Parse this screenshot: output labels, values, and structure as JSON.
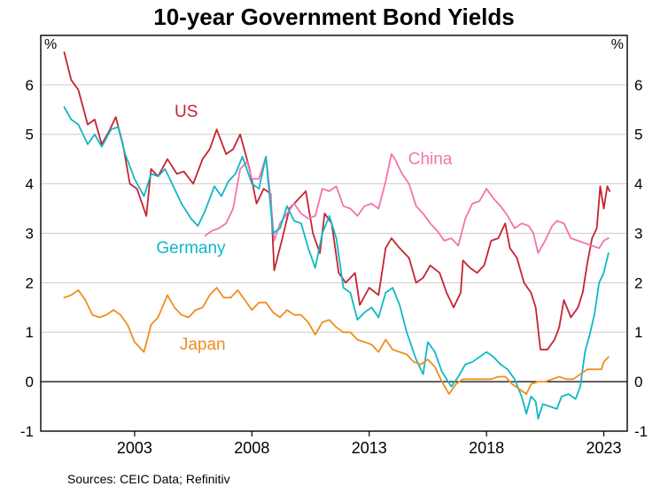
{
  "title": "10-year Government Bond Yields",
  "source": "Sources: CEIC Data; Refinitiv",
  "chart_data": {
    "type": "line",
    "title": "10-year Government Bond Yields",
    "unit": "%",
    "xlabel": "",
    "ylabel": "%",
    "x_domain": [
      1999.0,
      2024.0
    ],
    "y_domain": [
      -1,
      7
    ],
    "x_ticks": [
      2003,
      2008,
      2013,
      2018,
      2023
    ],
    "y_ticks": [
      -1,
      0,
      1,
      2,
      3,
      4,
      5,
      6
    ],
    "grid": true,
    "zero_line": true,
    "legend_position": "inline-labels",
    "frame_color": "#000000",
    "grid_color": "#cccccc",
    "series": [
      {
        "name": "US",
        "color": "#c42432",
        "label_pos": {
          "x": 2005.2,
          "y": 5.35
        },
        "points": [
          [
            2000.0,
            6.66
          ],
          [
            2000.3,
            6.1
          ],
          [
            2000.6,
            5.9
          ],
          [
            2001.0,
            5.2
          ],
          [
            2001.3,
            5.3
          ],
          [
            2001.6,
            4.8
          ],
          [
            2001.9,
            5.05
          ],
          [
            2002.2,
            5.35
          ],
          [
            2002.5,
            4.8
          ],
          [
            2002.8,
            4.0
          ],
          [
            2003.1,
            3.9
          ],
          [
            2003.5,
            3.35
          ],
          [
            2003.7,
            4.3
          ],
          [
            2004.0,
            4.15
          ],
          [
            2004.4,
            4.5
          ],
          [
            2004.8,
            4.2
          ],
          [
            2005.1,
            4.25
          ],
          [
            2005.5,
            4.0
          ],
          [
            2005.9,
            4.5
          ],
          [
            2006.2,
            4.7
          ],
          [
            2006.5,
            5.1
          ],
          [
            2006.9,
            4.6
          ],
          [
            2007.2,
            4.7
          ],
          [
            2007.5,
            5.0
          ],
          [
            2007.9,
            4.3
          ],
          [
            2008.2,
            3.6
          ],
          [
            2008.5,
            3.9
          ],
          [
            2008.8,
            3.8
          ],
          [
            2008.95,
            2.25
          ],
          [
            2009.3,
            2.9
          ],
          [
            2009.6,
            3.5
          ],
          [
            2010.0,
            3.7
          ],
          [
            2010.3,
            3.85
          ],
          [
            2010.6,
            3.0
          ],
          [
            2010.9,
            2.6
          ],
          [
            2011.1,
            3.4
          ],
          [
            2011.4,
            3.2
          ],
          [
            2011.7,
            2.2
          ],
          [
            2012.0,
            2.0
          ],
          [
            2012.4,
            2.2
          ],
          [
            2012.6,
            1.55
          ],
          [
            2013.0,
            1.9
          ],
          [
            2013.4,
            1.75
          ],
          [
            2013.7,
            2.7
          ],
          [
            2013.95,
            2.9
          ],
          [
            2014.3,
            2.7
          ],
          [
            2014.7,
            2.5
          ],
          [
            2015.0,
            2.0
          ],
          [
            2015.3,
            2.1
          ],
          [
            2015.6,
            2.35
          ],
          [
            2016.0,
            2.2
          ],
          [
            2016.3,
            1.8
          ],
          [
            2016.6,
            1.5
          ],
          [
            2016.9,
            1.8
          ],
          [
            2017.0,
            2.45
          ],
          [
            2017.3,
            2.3
          ],
          [
            2017.6,
            2.2
          ],
          [
            2017.9,
            2.35
          ],
          [
            2018.2,
            2.85
          ],
          [
            2018.5,
            2.9
          ],
          [
            2018.8,
            3.2
          ],
          [
            2019.0,
            2.7
          ],
          [
            2019.3,
            2.5
          ],
          [
            2019.6,
            2.0
          ],
          [
            2019.9,
            1.8
          ],
          [
            2020.1,
            1.5
          ],
          [
            2020.3,
            0.65
          ],
          [
            2020.6,
            0.65
          ],
          [
            2020.9,
            0.85
          ],
          [
            2021.1,
            1.1
          ],
          [
            2021.3,
            1.65
          ],
          [
            2021.6,
            1.3
          ],
          [
            2021.9,
            1.5
          ],
          [
            2022.1,
            1.8
          ],
          [
            2022.3,
            2.4
          ],
          [
            2022.5,
            2.9
          ],
          [
            2022.7,
            3.1
          ],
          [
            2022.85,
            3.95
          ],
          [
            2023.0,
            3.5
          ],
          [
            2023.15,
            3.95
          ],
          [
            2023.25,
            3.85
          ]
        ]
      },
      {
        "name": "China",
        "color": "#f473ae",
        "label_pos": {
          "x": 2015.6,
          "y": 4.4
        },
        "points": [
          [
            2006.0,
            2.95
          ],
          [
            2006.3,
            3.05
          ],
          [
            2006.6,
            3.1
          ],
          [
            2006.9,
            3.2
          ],
          [
            2007.2,
            3.5
          ],
          [
            2007.5,
            4.3
          ],
          [
            2007.8,
            4.45
          ],
          [
            2008.0,
            4.1
          ],
          [
            2008.3,
            4.1
          ],
          [
            2008.6,
            4.55
          ],
          [
            2008.8,
            3.7
          ],
          [
            2008.95,
            2.85
          ],
          [
            2009.2,
            3.2
          ],
          [
            2009.5,
            3.4
          ],
          [
            2009.8,
            3.6
          ],
          [
            2010.1,
            3.4
          ],
          [
            2010.4,
            3.3
          ],
          [
            2010.7,
            3.35
          ],
          [
            2011.0,
            3.9
          ],
          [
            2011.3,
            3.85
          ],
          [
            2011.6,
            3.95
          ],
          [
            2011.9,
            3.55
          ],
          [
            2012.2,
            3.5
          ],
          [
            2012.5,
            3.35
          ],
          [
            2012.8,
            3.55
          ],
          [
            2013.1,
            3.6
          ],
          [
            2013.4,
            3.5
          ],
          [
            2013.7,
            4.05
          ],
          [
            2013.95,
            4.6
          ],
          [
            2014.1,
            4.5
          ],
          [
            2014.4,
            4.2
          ],
          [
            2014.7,
            4.0
          ],
          [
            2015.0,
            3.55
          ],
          [
            2015.3,
            3.4
          ],
          [
            2015.6,
            3.2
          ],
          [
            2015.9,
            3.05
          ],
          [
            2016.2,
            2.85
          ],
          [
            2016.5,
            2.9
          ],
          [
            2016.8,
            2.75
          ],
          [
            2017.1,
            3.3
          ],
          [
            2017.4,
            3.6
          ],
          [
            2017.7,
            3.65
          ],
          [
            2018.0,
            3.9
          ],
          [
            2018.3,
            3.7
          ],
          [
            2018.6,
            3.55
          ],
          [
            2018.9,
            3.35
          ],
          [
            2019.2,
            3.1
          ],
          [
            2019.5,
            3.2
          ],
          [
            2019.8,
            3.15
          ],
          [
            2020.0,
            3.0
          ],
          [
            2020.2,
            2.6
          ],
          [
            2020.5,
            2.85
          ],
          [
            2020.8,
            3.15
          ],
          [
            2021.0,
            3.25
          ],
          [
            2021.3,
            3.2
          ],
          [
            2021.6,
            2.9
          ],
          [
            2021.9,
            2.85
          ],
          [
            2022.2,
            2.8
          ],
          [
            2022.5,
            2.75
          ],
          [
            2022.8,
            2.7
          ],
          [
            2023.0,
            2.85
          ],
          [
            2023.2,
            2.9
          ]
        ]
      },
      {
        "name": "Germany",
        "color": "#0fb8c6",
        "label_pos": {
          "x": 2005.4,
          "y": 2.6
        },
        "points": [
          [
            2000.0,
            5.55
          ],
          [
            2000.3,
            5.3
          ],
          [
            2000.6,
            5.2
          ],
          [
            2001.0,
            4.8
          ],
          [
            2001.3,
            5.0
          ],
          [
            2001.6,
            4.75
          ],
          [
            2002.0,
            5.1
          ],
          [
            2002.3,
            5.15
          ],
          [
            2002.6,
            4.6
          ],
          [
            2003.0,
            4.1
          ],
          [
            2003.4,
            3.75
          ],
          [
            2003.7,
            4.2
          ],
          [
            2004.0,
            4.15
          ],
          [
            2004.3,
            4.3
          ],
          [
            2004.6,
            4.0
          ],
          [
            2005.0,
            3.6
          ],
          [
            2005.4,
            3.3
          ],
          [
            2005.7,
            3.15
          ],
          [
            2006.0,
            3.45
          ],
          [
            2006.4,
            3.95
          ],
          [
            2006.7,
            3.75
          ],
          [
            2007.0,
            4.05
          ],
          [
            2007.3,
            4.2
          ],
          [
            2007.6,
            4.55
          ],
          [
            2008.0,
            4.0
          ],
          [
            2008.3,
            3.9
          ],
          [
            2008.6,
            4.55
          ],
          [
            2008.9,
            3.0
          ],
          [
            2009.2,
            3.1
          ],
          [
            2009.5,
            3.55
          ],
          [
            2009.8,
            3.25
          ],
          [
            2010.1,
            3.2
          ],
          [
            2010.4,
            2.7
          ],
          [
            2010.7,
            2.3
          ],
          [
            2011.0,
            3.0
          ],
          [
            2011.3,
            3.35
          ],
          [
            2011.6,
            2.9
          ],
          [
            2011.9,
            1.9
          ],
          [
            2012.2,
            1.8
          ],
          [
            2012.5,
            1.25
          ],
          [
            2012.8,
            1.4
          ],
          [
            2013.1,
            1.5
          ],
          [
            2013.4,
            1.3
          ],
          [
            2013.7,
            1.8
          ],
          [
            2014.0,
            1.9
          ],
          [
            2014.3,
            1.55
          ],
          [
            2014.6,
            1.0
          ],
          [
            2015.0,
            0.45
          ],
          [
            2015.3,
            0.15
          ],
          [
            2015.5,
            0.8
          ],
          [
            2015.8,
            0.6
          ],
          [
            2016.1,
            0.2
          ],
          [
            2016.5,
            -0.1
          ],
          [
            2016.8,
            0.1
          ],
          [
            2017.1,
            0.35
          ],
          [
            2017.4,
            0.4
          ],
          [
            2017.7,
            0.5
          ],
          [
            2018.0,
            0.6
          ],
          [
            2018.3,
            0.5
          ],
          [
            2018.6,
            0.35
          ],
          [
            2018.9,
            0.25
          ],
          [
            2019.2,
            0.05
          ],
          [
            2019.5,
            -0.3
          ],
          [
            2019.7,
            -0.65
          ],
          [
            2019.9,
            -0.3
          ],
          [
            2020.1,
            -0.4
          ],
          [
            2020.2,
            -0.75
          ],
          [
            2020.4,
            -0.45
          ],
          [
            2020.7,
            -0.5
          ],
          [
            2021.0,
            -0.55
          ],
          [
            2021.2,
            -0.3
          ],
          [
            2021.5,
            -0.25
          ],
          [
            2021.8,
            -0.35
          ],
          [
            2022.0,
            -0.1
          ],
          [
            2022.2,
            0.6
          ],
          [
            2022.4,
            0.95
          ],
          [
            2022.6,
            1.35
          ],
          [
            2022.8,
            2.0
          ],
          [
            2023.0,
            2.2
          ],
          [
            2023.2,
            2.6
          ]
        ]
      },
      {
        "name": "Japan",
        "color": "#ef8e1f",
        "label_pos": {
          "x": 2005.9,
          "y": 0.65
        },
        "points": [
          [
            2000.0,
            1.7
          ],
          [
            2000.3,
            1.75
          ],
          [
            2000.6,
            1.85
          ],
          [
            2000.9,
            1.65
          ],
          [
            2001.2,
            1.35
          ],
          [
            2001.5,
            1.3
          ],
          [
            2001.8,
            1.35
          ],
          [
            2002.1,
            1.45
          ],
          [
            2002.4,
            1.35
          ],
          [
            2002.7,
            1.15
          ],
          [
            2003.0,
            0.8
          ],
          [
            2003.4,
            0.6
          ],
          [
            2003.7,
            1.15
          ],
          [
            2004.0,
            1.3
          ],
          [
            2004.4,
            1.75
          ],
          [
            2004.7,
            1.5
          ],
          [
            2005.0,
            1.35
          ],
          [
            2005.3,
            1.3
          ],
          [
            2005.6,
            1.45
          ],
          [
            2005.9,
            1.5
          ],
          [
            2006.2,
            1.75
          ],
          [
            2006.5,
            1.9
          ],
          [
            2006.8,
            1.7
          ],
          [
            2007.1,
            1.7
          ],
          [
            2007.4,
            1.85
          ],
          [
            2007.7,
            1.65
          ],
          [
            2008.0,
            1.45
          ],
          [
            2008.3,
            1.6
          ],
          [
            2008.6,
            1.6
          ],
          [
            2008.9,
            1.4
          ],
          [
            2009.2,
            1.3
          ],
          [
            2009.5,
            1.45
          ],
          [
            2009.8,
            1.35
          ],
          [
            2010.1,
            1.35
          ],
          [
            2010.4,
            1.2
          ],
          [
            2010.7,
            0.95
          ],
          [
            2011.0,
            1.2
          ],
          [
            2011.3,
            1.25
          ],
          [
            2011.6,
            1.1
          ],
          [
            2011.9,
            1.0
          ],
          [
            2012.2,
            1.0
          ],
          [
            2012.5,
            0.85
          ],
          [
            2012.8,
            0.8
          ],
          [
            2013.1,
            0.75
          ],
          [
            2013.4,
            0.6
          ],
          [
            2013.7,
            0.85
          ],
          [
            2014.0,
            0.65
          ],
          [
            2014.3,
            0.6
          ],
          [
            2014.6,
            0.55
          ],
          [
            2014.9,
            0.4
          ],
          [
            2015.2,
            0.35
          ],
          [
            2015.5,
            0.45
          ],
          [
            2015.8,
            0.3
          ],
          [
            2016.1,
            0.0
          ],
          [
            2016.4,
            -0.25
          ],
          [
            2016.7,
            -0.05
          ],
          [
            2017.0,
            0.05
          ],
          [
            2017.3,
            0.05
          ],
          [
            2017.6,
            0.05
          ],
          [
            2017.9,
            0.05
          ],
          [
            2018.2,
            0.05
          ],
          [
            2018.5,
            0.1
          ],
          [
            2018.8,
            0.1
          ],
          [
            2019.1,
            -0.05
          ],
          [
            2019.4,
            -0.15
          ],
          [
            2019.7,
            -0.25
          ],
          [
            2019.9,
            -0.05
          ],
          [
            2020.2,
            0.0
          ],
          [
            2020.5,
            0.0
          ],
          [
            2020.8,
            0.05
          ],
          [
            2021.1,
            0.1
          ],
          [
            2021.4,
            0.05
          ],
          [
            2021.7,
            0.05
          ],
          [
            2022.0,
            0.15
          ],
          [
            2022.3,
            0.25
          ],
          [
            2022.6,
            0.25
          ],
          [
            2022.9,
            0.25
          ],
          [
            2023.0,
            0.4
          ],
          [
            2023.2,
            0.5
          ]
        ]
      }
    ]
  }
}
